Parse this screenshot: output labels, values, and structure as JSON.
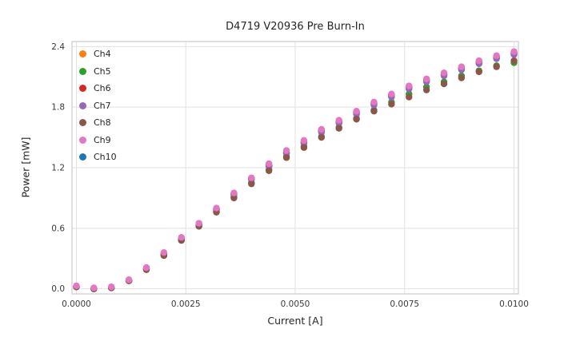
{
  "chart_data": {
    "type": "scatter",
    "title": "D4719 V20936 Pre Burn-In",
    "xlabel": "Current [A]",
    "ylabel": "Power [mW]",
    "xlim": [
      -0.0001,
      0.0101
    ],
    "ylim": [
      -0.05,
      2.45
    ],
    "grid": true,
    "legend_position": "upper-left",
    "xticks": {
      "values": [
        0.0,
        0.0025,
        0.005,
        0.0075,
        0.01
      ],
      "labels": [
        "0.0000",
        "0.0025",
        "0.0050",
        "0.0075",
        "0.0100"
      ]
    },
    "yticks": {
      "values": [
        0.0,
        0.6,
        1.2,
        1.8,
        2.4
      ],
      "labels": [
        "0.0",
        "0.6",
        "1.2",
        "1.8",
        "2.4"
      ]
    },
    "marker": {
      "shape": "circle",
      "radius_px": 4.2
    },
    "x": [
      0.0,
      0.0004,
      0.0008,
      0.0012,
      0.0016,
      0.002,
      0.0024,
      0.0028,
      0.0032,
      0.0036,
      0.004,
      0.0044,
      0.0048,
      0.0052,
      0.0056,
      0.006,
      0.0064,
      0.0068,
      0.0072,
      0.0076,
      0.008,
      0.0084,
      0.0088,
      0.0092,
      0.0096,
      0.01
    ],
    "series": [
      {
        "name": "Ch4",
        "color": "#ff7f0e",
        "values": [
          0.02,
          0.0,
          0.01,
          0.09,
          0.21,
          0.35,
          0.5,
          0.64,
          0.79,
          0.94,
          1.09,
          1.22,
          1.35,
          1.45,
          1.56,
          1.65,
          1.74,
          1.83,
          1.91,
          1.99,
          2.06,
          2.12,
          2.18,
          2.24,
          2.29,
          2.33
        ]
      },
      {
        "name": "Ch5",
        "color": "#2ca02c",
        "values": [
          0.02,
          0.0,
          0.01,
          0.08,
          0.19,
          0.33,
          0.48,
          0.62,
          0.76,
          0.91,
          1.05,
          1.18,
          1.31,
          1.41,
          1.51,
          1.6,
          1.69,
          1.77,
          1.85,
          1.93,
          2.0,
          2.05,
          2.11,
          2.16,
          2.21,
          2.24
        ]
      },
      {
        "name": "Ch6",
        "color": "#d62728",
        "values": [
          0.02,
          0.0,
          0.01,
          0.08,
          0.2,
          0.34,
          0.49,
          0.64,
          0.79,
          0.94,
          1.09,
          1.22,
          1.35,
          1.46,
          1.57,
          1.66,
          1.75,
          1.84,
          1.92,
          2.0,
          2.07,
          2.13,
          2.19,
          2.25,
          2.3,
          2.34
        ]
      },
      {
        "name": "Ch7",
        "color": "#9467bd",
        "values": [
          0.02,
          0.0,
          0.01,
          0.08,
          0.2,
          0.34,
          0.49,
          0.63,
          0.78,
          0.93,
          1.08,
          1.21,
          1.34,
          1.44,
          1.55,
          1.64,
          1.73,
          1.82,
          1.9,
          1.98,
          2.05,
          2.11,
          2.17,
          2.23,
          2.28,
          2.32
        ]
      },
      {
        "name": "Ch8",
        "color": "#8c564b",
        "values": [
          0.02,
          0.0,
          0.01,
          0.08,
          0.19,
          0.33,
          0.48,
          0.62,
          0.76,
          0.9,
          1.04,
          1.17,
          1.3,
          1.4,
          1.5,
          1.59,
          1.68,
          1.76,
          1.83,
          1.9,
          1.97,
          2.03,
          2.09,
          2.15,
          2.2,
          2.26
        ]
      },
      {
        "name": "Ch9",
        "color": "#e377c2",
        "values": [
          0.03,
          0.01,
          0.02,
          0.09,
          0.21,
          0.36,
          0.51,
          0.65,
          0.8,
          0.95,
          1.1,
          1.24,
          1.37,
          1.47,
          1.58,
          1.67,
          1.76,
          1.85,
          1.93,
          2.01,
          2.08,
          2.14,
          2.2,
          2.26,
          2.31,
          2.35
        ]
      },
      {
        "name": "Ch10",
        "color": "#1f77b4",
        "values": [
          0.02,
          0.0,
          0.01,
          0.08,
          0.2,
          0.35,
          0.5,
          0.64,
          0.79,
          0.94,
          1.09,
          1.22,
          1.35,
          1.45,
          1.56,
          1.65,
          1.74,
          1.83,
          1.91,
          1.99,
          2.06,
          2.12,
          2.18,
          2.24,
          2.29,
          2.33
        ]
      }
    ],
    "draw_order": [
      "Ch10",
      "Ch4",
      "Ch5",
      "Ch6",
      "Ch7",
      "Ch8",
      "Ch9"
    ]
  }
}
